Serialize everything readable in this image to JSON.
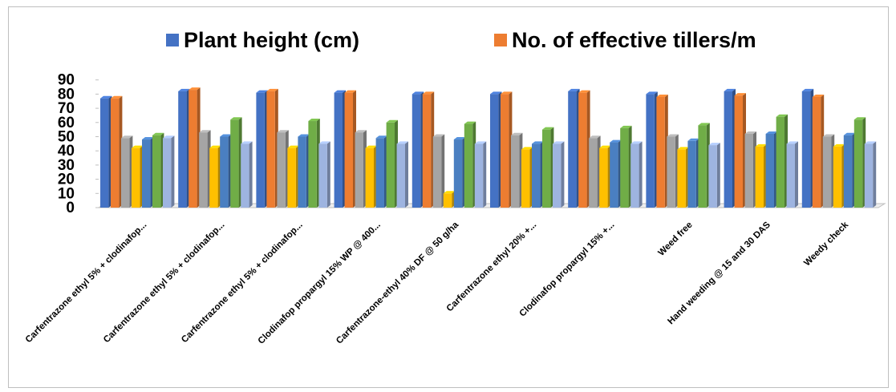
{
  "chart_data": {
    "type": "bar",
    "style": "3d-clustered-column",
    "categories": [
      "Carfentrazone ethyl 5% + clodinafop...",
      "Carfentrazone ethyl 5% + clodinafop...",
      "Carfentrazone ethyl 5% + clodinafop...",
      "Clodinafop propargyl 15% WP @ 400...",
      "Carfentrazone-ethyl 40% DF @ 50 g/ha",
      "Carfentrazone ethyl 20% +...",
      "Clodinafop propargyl 15% +...",
      "Weed free",
      "Hand weeding @ 15 and 30 DAS",
      "Weedy check"
    ],
    "series": [
      {
        "name": "Plant height (cm)",
        "color": "#4472c4",
        "values": [
          77,
          82,
          81,
          81,
          80,
          80,
          82,
          80,
          82,
          82
        ]
      },
      {
        "name": "No. of effective tillers/m",
        "color": "#ed7d31",
        "values": [
          77,
          83,
          82,
          81,
          80,
          80,
          81,
          78,
          79,
          78
        ]
      },
      {
        "color": "#a5a5a5",
        "values": [
          49,
          53,
          53,
          53,
          50,
          51,
          49,
          50,
          52,
          50
        ]
      },
      {
        "color": "#ffc000",
        "values": [
          42,
          42,
          42,
          42,
          10,
          41,
          42,
          41,
          43,
          43
        ]
      },
      {
        "color": "#4a7fc1",
        "values": [
          48,
          50,
          50,
          49,
          48,
          45,
          46,
          47,
          52,
          51
        ]
      },
      {
        "color": "#70ad47",
        "values": [
          51,
          62,
          61,
          60,
          59,
          55,
          56,
          58,
          64,
          62
        ]
      },
      {
        "color": "#9eb4e0",
        "values": [
          49,
          45,
          45,
          45,
          45,
          45,
          45,
          44,
          45,
          45
        ]
      }
    ],
    "yticks": [
      0,
      10,
      20,
      30,
      40,
      50,
      60,
      70,
      80,
      90
    ],
    "ylim": [
      0,
      90
    ],
    "title": "",
    "xlabel": "",
    "ylabel": "",
    "grid": false,
    "legend": "top"
  }
}
